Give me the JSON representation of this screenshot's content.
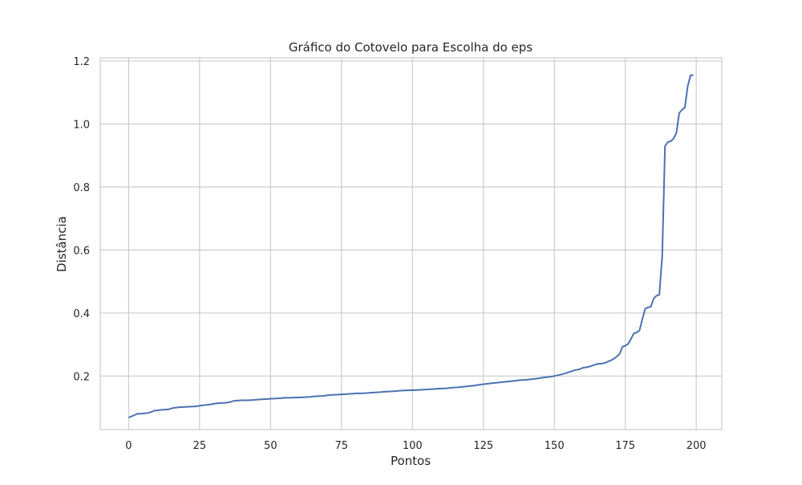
{
  "chart_data": {
    "type": "line",
    "title": "Gráfico do Cotovelo para Escolha do eps",
    "xlabel": "Pontos",
    "ylabel": "Distância",
    "xlim": [
      -10,
      209
    ],
    "ylim": [
      0.03,
      1.21
    ],
    "xticks": [
      0,
      25,
      50,
      75,
      100,
      125,
      150,
      175,
      200
    ],
    "yticks": [
      0.2,
      0.4,
      0.6,
      0.8,
      1.0,
      1.2
    ],
    "ytick_labels": [
      "0.2",
      "0.4",
      "0.6",
      "0.8",
      "1.0",
      "1.2"
    ],
    "grid": true,
    "legend": "none",
    "line_color": "#4c72b0",
    "series": [
      {
        "x": [
          0,
          1,
          2,
          3,
          5,
          7,
          8,
          9,
          10,
          12,
          14,
          15,
          16,
          17,
          18,
          20,
          22,
          24,
          25,
          26,
          28,
          29,
          30,
          32,
          34,
          35,
          36,
          37,
          38,
          40,
          42,
          44,
          45,
          47,
          49,
          50,
          52,
          54,
          55,
          57,
          59,
          60,
          62,
          64,
          65,
          67,
          69,
          70,
          72,
          74,
          75,
          77,
          79,
          80,
          82,
          84,
          85,
          87,
          89,
          90,
          92,
          94,
          95,
          97,
          99,
          100,
          102,
          104,
          106,
          108,
          109,
          112,
          114,
          116,
          118,
          120,
          122,
          124,
          126,
          128,
          130,
          132,
          134,
          136,
          138,
          140,
          142,
          144,
          146,
          148,
          150,
          152,
          154,
          155,
          157,
          159,
          160,
          162,
          164,
          165,
          167,
          168,
          169,
          170,
          171,
          172,
          173,
          174,
          175,
          176,
          177,
          178,
          179,
          180,
          181,
          182,
          183,
          184,
          185,
          186,
          187,
          188,
          189,
          190,
          191,
          192,
          193,
          194,
          195,
          196,
          197,
          198,
          199
        ],
        "y": [
          0.068,
          0.072,
          0.076,
          0.08,
          0.081,
          0.083,
          0.086,
          0.09,
          0.091,
          0.093,
          0.094,
          0.097,
          0.099,
          0.1,
          0.101,
          0.102,
          0.103,
          0.104,
          0.106,
          0.107,
          0.109,
          0.11,
          0.112,
          0.114,
          0.115,
          0.116,
          0.118,
          0.121,
          0.122,
          0.123,
          0.123,
          0.124,
          0.125,
          0.126,
          0.127,
          0.128,
          0.129,
          0.13,
          0.131,
          0.131,
          0.132,
          0.132,
          0.133,
          0.134,
          0.135,
          0.136,
          0.137,
          0.139,
          0.14,
          0.141,
          0.142,
          0.143,
          0.144,
          0.145,
          0.145,
          0.146,
          0.147,
          0.148,
          0.149,
          0.15,
          0.151,
          0.152,
          0.153,
          0.154,
          0.155,
          0.155,
          0.156,
          0.157,
          0.158,
          0.159,
          0.16,
          0.161,
          0.163,
          0.164,
          0.166,
          0.168,
          0.17,
          0.173,
          0.175,
          0.177,
          0.179,
          0.181,
          0.183,
          0.185,
          0.187,
          0.188,
          0.19,
          0.192,
          0.195,
          0.197,
          0.2,
          0.204,
          0.209,
          0.212,
          0.218,
          0.222,
          0.226,
          0.229,
          0.235,
          0.238,
          0.24,
          0.242,
          0.246,
          0.25,
          0.255,
          0.262,
          0.27,
          0.293,
          0.296,
          0.302,
          0.318,
          0.335,
          0.338,
          0.345,
          0.38,
          0.414,
          0.418,
          0.42,
          0.446,
          0.455,
          0.458,
          0.58,
          0.93,
          0.943,
          0.945,
          0.953,
          0.972,
          1.035,
          1.045,
          1.053,
          1.12,
          1.155,
          1.155
        ]
      }
    ]
  }
}
